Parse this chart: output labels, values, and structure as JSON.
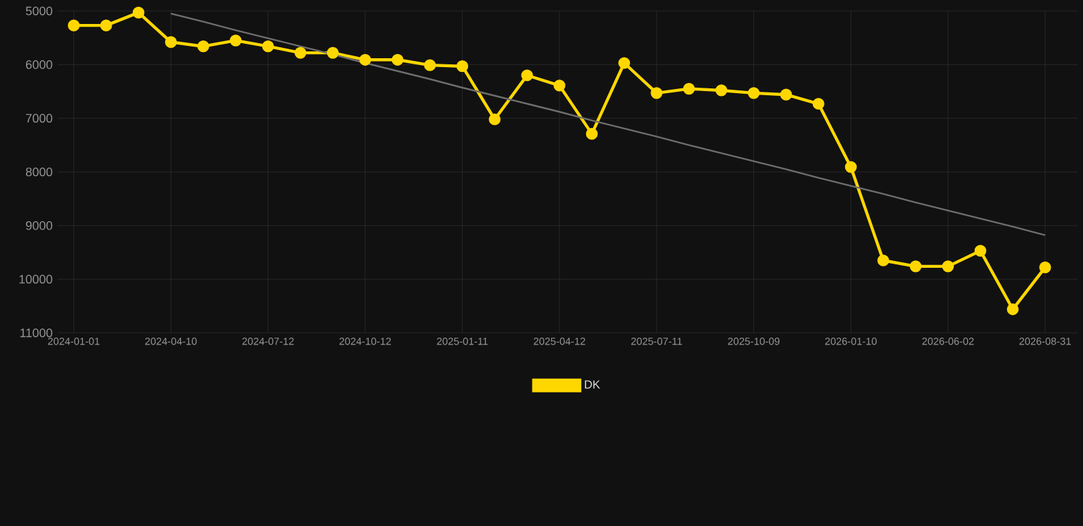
{
  "chart_data": {
    "type": "line",
    "categories": [
      "2024-01-01",
      null,
      null,
      "2024-04-10",
      null,
      null,
      "2024-07-12",
      null,
      null,
      "2024-10-12",
      null,
      null,
      "2025-01-11",
      null,
      null,
      "2025-04-12",
      null,
      null,
      "2025-07-11",
      null,
      null,
      "2025-10-09",
      null,
      null,
      "2026-01-10",
      null,
      null,
      "2026-06-02",
      null,
      null,
      "2026-08-31"
    ],
    "series": [
      {
        "name": "DK",
        "color": "#ffd700",
        "marker": "circle",
        "values": [
          5270,
          5270,
          5030,
          5580,
          5660,
          5550,
          5660,
          5780,
          5780,
          5910,
          5910,
          6010,
          6030,
          7020,
          6200,
          6390,
          7290,
          5970,
          6530,
          6450,
          6480,
          6530,
          6560,
          6730,
          7910,
          9650,
          9760,
          9760,
          9470,
          10560,
          9780
        ]
      },
      {
        "type": "line",
        "color": "#6e6e6e",
        "marker": "none",
        "values": [
          null,
          null,
          null,
          5050,
          5200,
          5360,
          5510,
          5660,
          5810,
          5970,
          6120,
          6270,
          6430,
          6580,
          6730,
          6880,
          7040,
          7190,
          7340,
          7500,
          7650,
          7800,
          7950,
          8110,
          8260,
          8410,
          8570,
          8720,
          8870,
          9020,
          9180
        ]
      }
    ],
    "ylim": [
      11000,
      5000
    ],
    "yticks": [
      5000,
      6000,
      7000,
      8000,
      9000,
      10000,
      11000
    ],
    "grid": true,
    "legend": "bottom",
    "line_style": "solid"
  }
}
